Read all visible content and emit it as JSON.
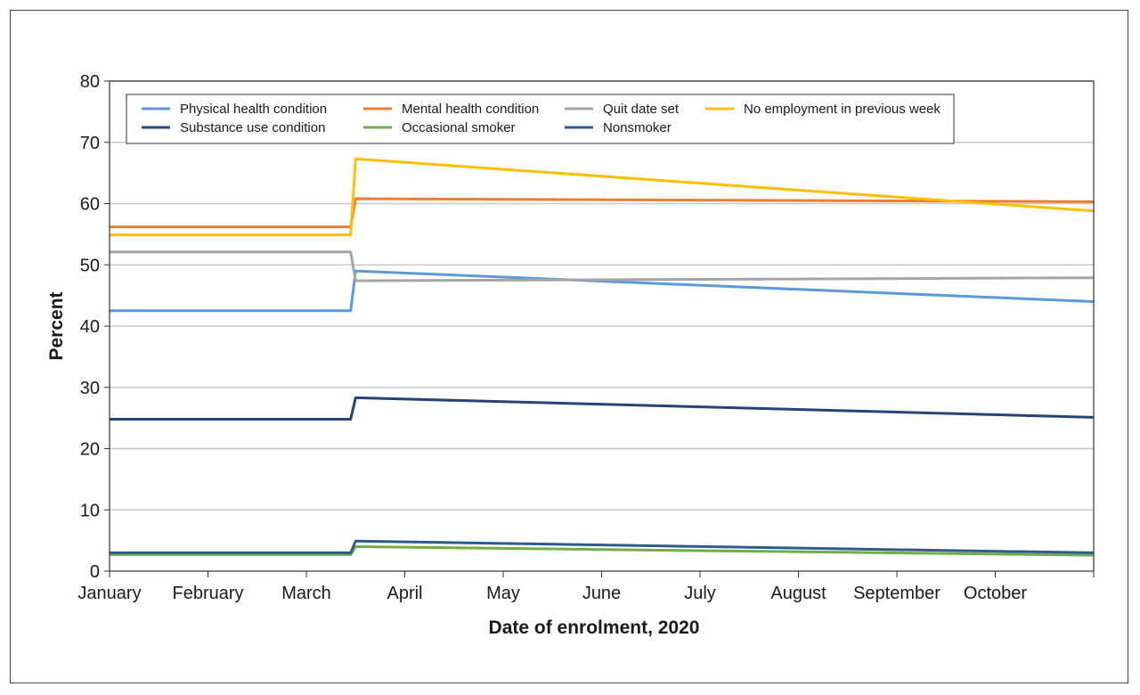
{
  "chart_data": {
    "type": "line",
    "title": "",
    "xlabel": "Date of enrolment, 2020",
    "ylabel": "Percent",
    "ylim": [
      0,
      80
    ],
    "yticks": [
      0,
      10,
      20,
      30,
      40,
      50,
      60,
      70,
      80
    ],
    "x_ticks": [
      "January",
      "February",
      "March",
      "April",
      "May",
      "June",
      "July",
      "August",
      "September",
      "October"
    ],
    "x_domain_months": [
      0,
      10
    ],
    "grid": "horizontal",
    "legend_placement": "top",
    "x_note": "x values are in months since January 1, 2020",
    "series": [
      {
        "name": "Physical health condition",
        "color": "#5b9bd5",
        "points": [
          [
            0,
            42.5
          ],
          [
            2.45,
            42.5
          ],
          [
            2.5,
            49.0
          ],
          [
            10,
            44.0
          ]
        ]
      },
      {
        "name": "Mental health condition",
        "color": "#ed7d31",
        "points": [
          [
            0,
            56.2
          ],
          [
            2.45,
            56.2
          ],
          [
            2.5,
            60.8
          ],
          [
            10,
            60.3
          ]
        ]
      },
      {
        "name": "Quit date set",
        "color": "#a5a5a5",
        "points": [
          [
            0,
            52.1
          ],
          [
            2.45,
            52.1
          ],
          [
            2.5,
            47.4
          ],
          [
            10,
            47.9
          ]
        ]
      },
      {
        "name": "No employment in previous week",
        "color": "#ffc000",
        "points": [
          [
            0,
            54.9
          ],
          [
            2.45,
            54.9
          ],
          [
            2.5,
            67.3
          ],
          [
            10,
            58.8
          ]
        ]
      },
      {
        "name": "Substance use condition",
        "color": "#264478",
        "points": [
          [
            0,
            24.8
          ],
          [
            2.45,
            24.8
          ],
          [
            2.5,
            28.3
          ],
          [
            10,
            25.1
          ]
        ]
      },
      {
        "name": "Occasional smoker",
        "color": "#70ad47",
        "points": [
          [
            0,
            2.7
          ],
          [
            2.45,
            2.7
          ],
          [
            2.5,
            4.0
          ],
          [
            10,
            2.6
          ]
        ]
      },
      {
        "name": "Nonsmoker",
        "color": "#2e5c8a",
        "points": [
          [
            0,
            3.0
          ],
          [
            2.45,
            3.0
          ],
          [
            2.5,
            4.9
          ],
          [
            10,
            3.0
          ]
        ]
      }
    ],
    "legend_rows": [
      [
        "Physical health condition",
        "Mental health condition",
        "Quit date set",
        "No employment in previous week"
      ],
      [
        "Substance use condition",
        "Occasional smoker",
        "Nonsmoker"
      ]
    ]
  }
}
